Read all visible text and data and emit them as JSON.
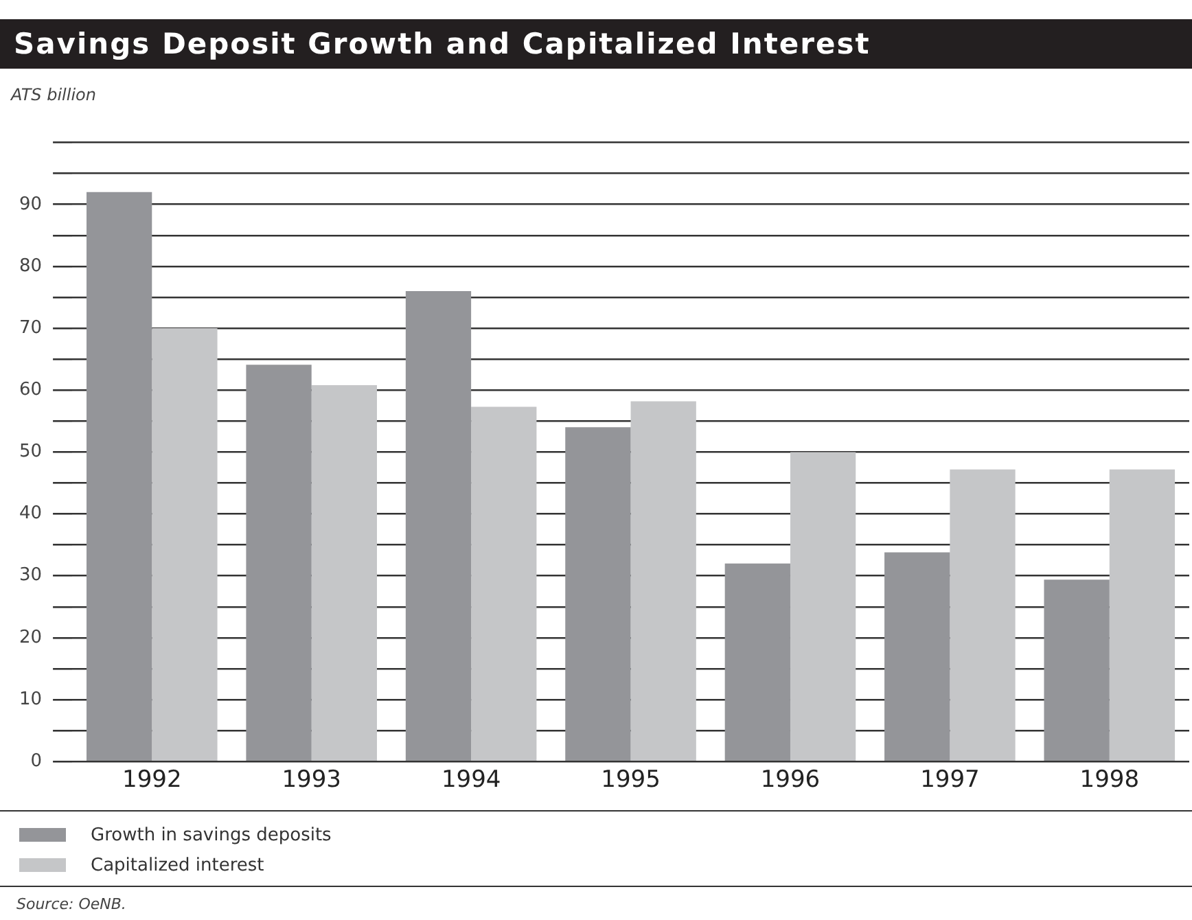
{
  "chart_data": {
    "type": "bar",
    "title": "Savings Deposit Growth and Capitalized Interest",
    "subtitle": "ATS billion",
    "categories": [
      "1992",
      "1993",
      "1994",
      "1995",
      "1996",
      "1997",
      "1998"
    ],
    "series": [
      {
        "name": "Growth in savings deposits",
        "color": "#949599",
        "values": [
          92.0,
          64.1,
          76.0,
          54.0,
          32.0,
          33.8,
          29.4
        ]
      },
      {
        "name": "Capitalized interest",
        "color": "#c5c6c8",
        "values": [
          70.0,
          60.8,
          57.3,
          58.2,
          50.0,
          47.2,
          47.2
        ]
      }
    ],
    "ylim": [
      0,
      100
    ],
    "yticks": [
      0,
      {
        "value": 5,
        "label": null
      },
      10,
      {
        "value": 15,
        "label": null
      },
      20,
      {
        "value": 25,
        "label": null
      },
      30,
      {
        "value": 35,
        "label": null
      },
      40,
      {
        "value": 45,
        "label": null
      },
      50,
      {
        "value": 55,
        "label": null
      },
      60,
      {
        "value": 65,
        "label": null
      },
      70,
      {
        "value": 75,
        "label": null
      },
      80,
      {
        "value": 85,
        "label": null
      },
      90,
      {
        "value": 95,
        "label": null
      },
      {
        "value": 100,
        "label": null
      }
    ],
    "grid": "y",
    "legend": "bottom",
    "annotations": [
      "Source: OeNB."
    ]
  }
}
